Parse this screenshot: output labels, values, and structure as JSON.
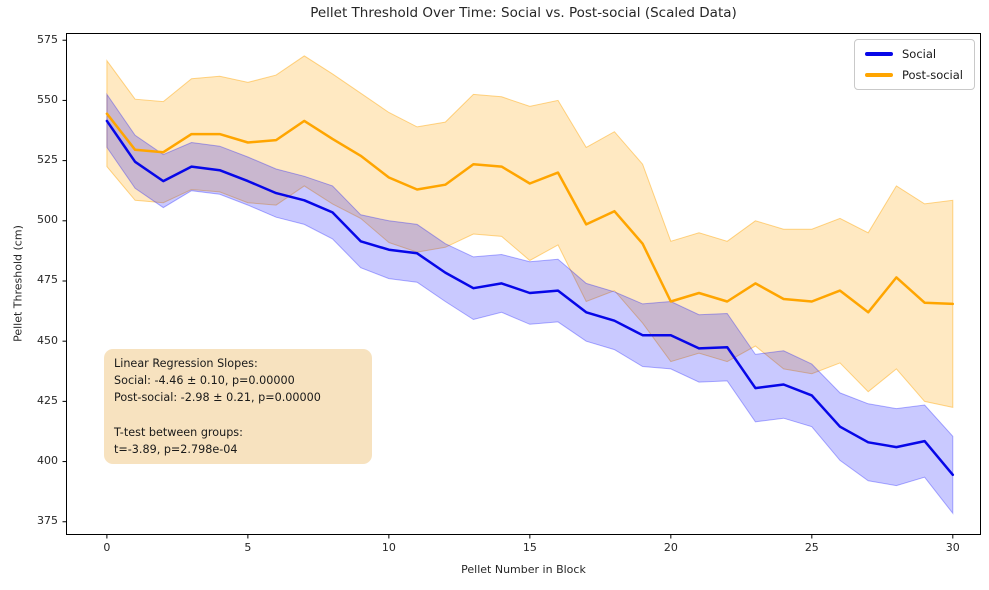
{
  "chart_data": {
    "type": "line",
    "title": "Pellet Threshold Over Time: Social vs. Post-social (Scaled Data)",
    "xlabel": "Pellet Number in Block",
    "ylabel": "Pellet Threshold (cm)",
    "x": [
      0,
      1,
      2,
      3,
      4,
      5,
      6,
      7,
      8,
      9,
      10,
      11,
      12,
      13,
      14,
      15,
      16,
      17,
      18,
      19,
      20,
      21,
      22,
      23,
      24,
      25,
      26,
      27,
      28,
      29,
      30
    ],
    "series": [
      {
        "name": "Social",
        "color": "#0707e8",
        "band_fill": "rgba(0,0,255,0.21)",
        "band_edge": "rgba(0,0,255,0.30)",
        "values": [
          541.5,
          524.5,
          516.5,
          522.5,
          521,
          516.5,
          511.5,
          508.5,
          503.5,
          491.5,
          488,
          486.5,
          478.5,
          472,
          474,
          470,
          471,
          462,
          458.5,
          452.5,
          452.5,
          447,
          447.5,
          430.5,
          432,
          427.5,
          414.5,
          408,
          406,
          408.5,
          394.5
        ],
        "band_halfwidth": [
          11,
          11,
          11,
          10,
          10,
          10,
          10,
          10,
          11,
          11,
          12,
          12,
          12,
          13,
          12,
          13,
          13,
          12,
          12,
          13,
          14,
          14,
          14,
          14,
          14,
          13,
          14,
          16,
          16,
          15,
          16
        ]
      },
      {
        "name": "Post-social",
        "color": "#ffa500",
        "band_fill": "rgba(255,165,0,0.24)",
        "band_edge": "rgba(255,165,0,0.45)",
        "values": [
          544.5,
          529.5,
          528.5,
          536,
          536,
          532.5,
          533.5,
          541.5,
          534,
          527,
          518,
          513,
          515,
          523.5,
          522.5,
          515.5,
          520,
          498.5,
          504,
          490.5,
          466.5,
          470,
          466.5,
          474,
          467.5,
          466.5,
          471,
          462,
          476.5,
          466,
          465.5
        ],
        "band_halfwidth": [
          22,
          21,
          21,
          23,
          24,
          25,
          27,
          27,
          27,
          26,
          27,
          26,
          26,
          29,
          29,
          32,
          30,
          32,
          33,
          33,
          25,
          25,
          25,
          26,
          29,
          30,
          30,
          33,
          38,
          41,
          43
        ]
      }
    ],
    "xticks": [
      0,
      5,
      10,
      15,
      20,
      25,
      30
    ],
    "yticks": [
      375,
      400,
      425,
      450,
      475,
      500,
      525,
      550,
      575
    ],
    "xlim": [
      -1.45,
      31.0
    ],
    "ylim": [
      369.5,
      578.0
    ],
    "grid": false,
    "legend_position": "upper right"
  },
  "annotation": {
    "lines": [
      "Linear Regression Slopes:",
      "Social: -4.46 ± 0.10, p=0.00000",
      "Post-social: -2.98 ± 0.21, p=0.00000",
      "",
      "T-test between groups:",
      "t=-3.89, p=2.798e-04"
    ]
  }
}
